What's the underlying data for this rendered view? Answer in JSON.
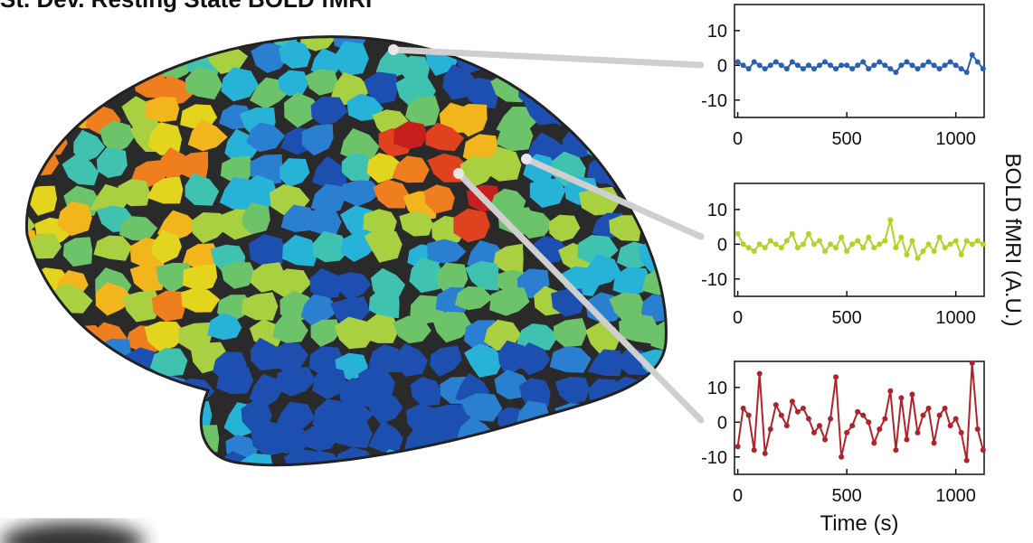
{
  "title": "St. Dev. Resting State BOLD fMRI",
  "chart_data": [
    {
      "type": "line",
      "x": [
        0,
        25,
        50,
        75,
        100,
        125,
        150,
        175,
        200,
        225,
        250,
        275,
        300,
        325,
        350,
        375,
        400,
        425,
        450,
        475,
        500,
        525,
        550,
        575,
        600,
        625,
        650,
        675,
        700,
        725,
        750,
        775,
        800,
        825,
        850,
        875,
        900,
        925,
        950,
        975,
        1000,
        1025,
        1050,
        1075,
        1100,
        1125
      ],
      "series": [
        {
          "color": "#2b5fb0",
          "values": [
            1,
            0,
            -1,
            1,
            0,
            -1,
            0,
            1,
            0,
            -1,
            1,
            0,
            -1,
            0,
            -1,
            0,
            1,
            0,
            -1,
            0,
            0,
            -1,
            0,
            1,
            -1,
            0,
            1,
            0,
            -1,
            -2,
            0,
            1,
            0,
            -1,
            0,
            1,
            0,
            -1,
            0,
            1,
            0,
            -1,
            -2,
            3,
            1,
            -1
          ]
        }
      ],
      "xlim": [
        -15,
        1130
      ],
      "ylim": [
        -15,
        17.5
      ],
      "xticks": [
        0,
        500,
        1000
      ],
      "yticks": [
        -10,
        0,
        10
      ]
    },
    {
      "type": "line",
      "x": [
        0,
        25,
        50,
        75,
        100,
        125,
        150,
        175,
        200,
        225,
        250,
        275,
        300,
        325,
        350,
        375,
        400,
        425,
        450,
        475,
        500,
        525,
        550,
        575,
        600,
        625,
        650,
        675,
        700,
        725,
        750,
        775,
        800,
        825,
        850,
        875,
        900,
        925,
        950,
        975,
        1000,
        1025,
        1050,
        1075,
        1100,
        1125
      ],
      "series": [
        {
          "color": "#b8cf2a",
          "values": [
            3,
            0,
            -1,
            -2,
            0,
            -1,
            1,
            0,
            -1,
            1,
            3,
            -1,
            0,
            3,
            0,
            1,
            -2,
            0,
            -1,
            2,
            -2,
            0,
            1,
            -1,
            2,
            -1,
            0,
            1,
            7,
            -1,
            2,
            -3,
            1,
            -4,
            -2,
            0,
            -2,
            2,
            -1,
            0,
            1,
            -3,
            1,
            0,
            1,
            0
          ]
        }
      ],
      "xlim": [
        -15,
        1130
      ],
      "ylim": [
        -15,
        17.5
      ],
      "xticks": [
        0,
        500,
        1000
      ],
      "yticks": [
        -10,
        0,
        10
      ],
      "ylabel": "BOLD fMRI (A.U.)"
    },
    {
      "type": "line",
      "x": [
        0,
        25,
        50,
        75,
        100,
        125,
        150,
        175,
        200,
        225,
        250,
        275,
        300,
        325,
        350,
        375,
        400,
        425,
        450,
        475,
        500,
        525,
        550,
        575,
        600,
        625,
        650,
        675,
        700,
        725,
        750,
        775,
        800,
        825,
        850,
        875,
        900,
        925,
        950,
        975,
        1000,
        1025,
        1050,
        1075,
        1100,
        1125
      ],
      "series": [
        {
          "color": "#b0232a",
          "values": [
            -7,
            4,
            2,
            -8,
            14,
            -9,
            -2,
            5,
            2,
            -1,
            6,
            3,
            4,
            1,
            -3,
            -1,
            -5,
            1,
            13,
            -10,
            -3,
            -1,
            3,
            2,
            0,
            -6,
            -2,
            1,
            9,
            -8,
            7,
            -5,
            8,
            -3,
            2,
            4,
            -6,
            2,
            4,
            -1,
            1,
            -3,
            -11,
            17,
            -2,
            -8
          ]
        }
      ],
      "xlim": [
        -15,
        1130
      ],
      "ylim": [
        -15,
        17.5
      ],
      "xticks": [
        0,
        500,
        1000
      ],
      "yticks": [
        -10,
        0,
        10
      ],
      "xlabel": "Time (s)"
    }
  ]
}
